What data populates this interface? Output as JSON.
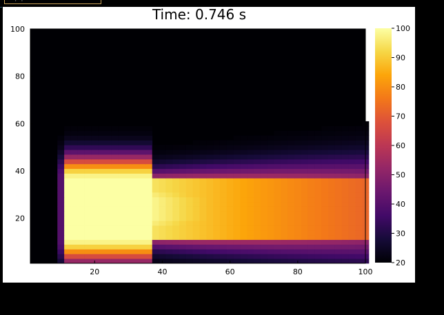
{
  "window": {
    "background": "#000000",
    "frame_label": "···|···|··"
  },
  "chart_data": {
    "type": "heatmap",
    "title": "Time: 0.746 s",
    "xlabel": "",
    "ylabel": "",
    "xlim": [
      1,
      100
    ],
    "ylim": [
      1,
      100
    ],
    "x_ticks": [
      "20",
      "40",
      "60",
      "80",
      "100"
    ],
    "y_ticks": [
      "20",
      "40",
      "60",
      "80",
      "100"
    ],
    "grid": false,
    "colormap": "inferno",
    "colorbar": {
      "range": [
        20,
        100
      ],
      "ticks": [
        "20",
        "30",
        "40",
        "50",
        "60",
        "70",
        "80",
        "90",
        "100"
      ]
    },
    "field": {
      "ambient_value": 20,
      "source_block": {
        "x_range": [
          11,
          37
        ],
        "y_range": [
          11,
          37
        ],
        "value": 100
      },
      "plume_direction": "+x"
    }
  }
}
